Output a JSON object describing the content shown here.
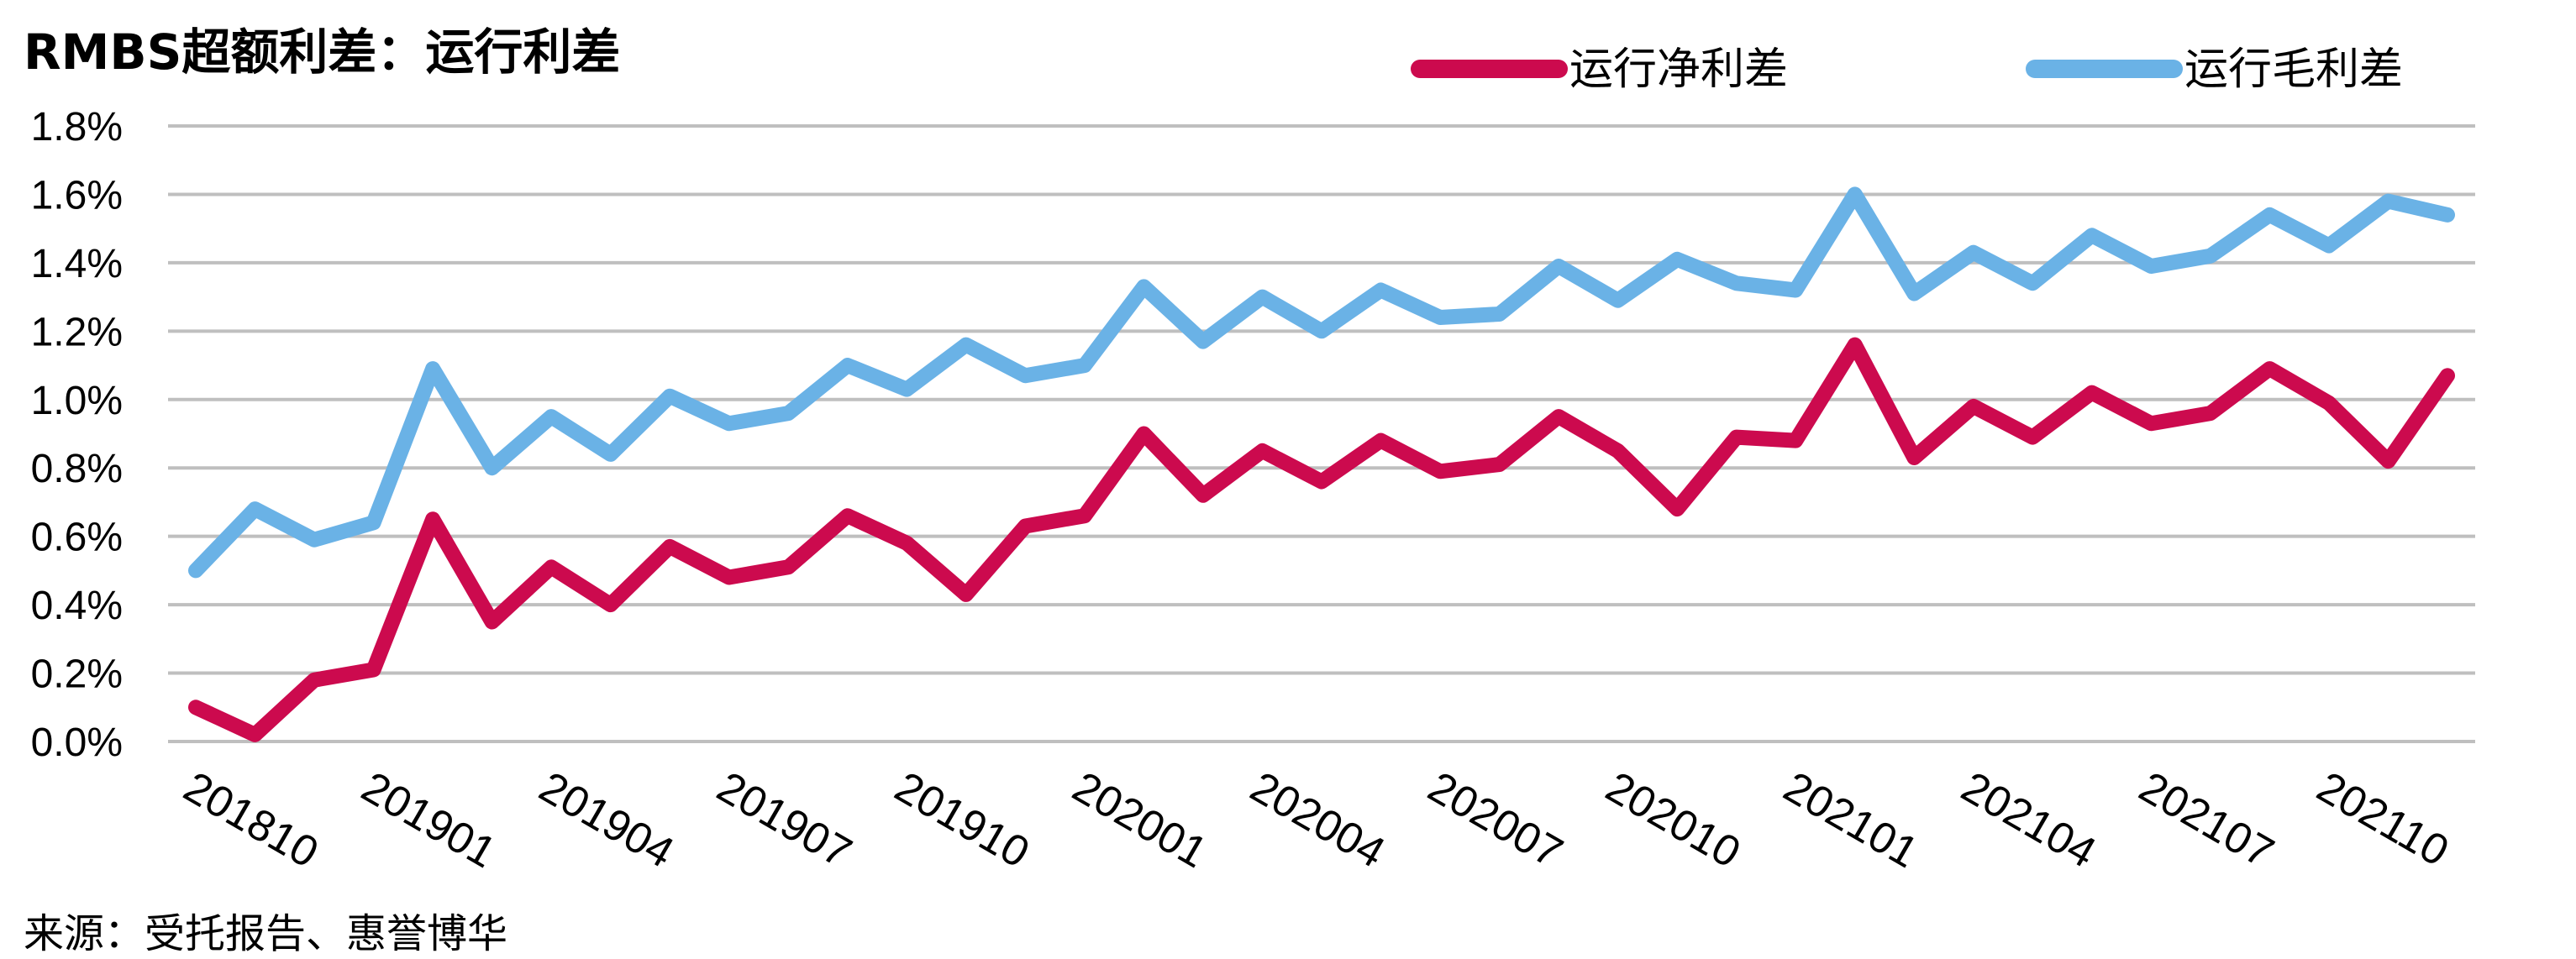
{
  "chart_data": {
    "type": "line",
    "title": "RMBS超额利差：运行利差",
    "source": "来源：受托报告、惠誉博华",
    "x": [
      "201810",
      "201811",
      "201812",
      "201901",
      "201902",
      "201903",
      "201904",
      "201905",
      "201906",
      "201907",
      "201908",
      "201909",
      "201910",
      "201911",
      "201912",
      "202001",
      "202002",
      "202003",
      "202004",
      "202005",
      "202006",
      "202007",
      "202008",
      "202009",
      "202010",
      "202011",
      "202012",
      "202101",
      "202102",
      "202103",
      "202104",
      "202105",
      "202106",
      "202107",
      "202108",
      "202109",
      "202110",
      "202111",
      "202112"
    ],
    "x_tick_labels": [
      "201810",
      "201901",
      "201904",
      "201907",
      "201910",
      "202001",
      "202004",
      "202007",
      "202010",
      "202101",
      "202104",
      "202107",
      "202110"
    ],
    "ylim": [
      0,
      1.8
    ],
    "y_tick_labels": [
      "0.0%",
      "0.2%",
      "0.4%",
      "0.6%",
      "0.8%",
      "1.0%",
      "1.2%",
      "1.4%",
      "1.6%",
      "1.8%"
    ],
    "grid": true,
    "legend_position": "top-right",
    "series": [
      {
        "name": "运行净利差",
        "color": "#cc0a4e",
        "values": [
          0.1,
          0.02,
          0.18,
          0.21,
          0.65,
          0.35,
          0.51,
          0.4,
          0.57,
          0.48,
          0.51,
          0.66,
          0.58,
          0.43,
          0.63,
          0.66,
          0.9,
          0.72,
          0.85,
          0.76,
          0.88,
          0.79,
          0.81,
          0.95,
          0.85,
          0.68,
          0.89,
          0.88,
          1.16,
          0.83,
          0.98,
          0.89,
          1.02,
          0.93,
          0.96,
          1.09,
          0.99,
          0.82,
          1.07
        ]
      },
      {
        "name": "运行毛利差",
        "color": "#6ab2e6",
        "values": [
          0.5,
          0.68,
          0.59,
          0.64,
          1.09,
          0.8,
          0.95,
          0.84,
          1.01,
          0.93,
          0.96,
          1.1,
          1.03,
          1.16,
          1.07,
          1.1,
          1.33,
          1.17,
          1.3,
          1.2,
          1.32,
          1.24,
          1.25,
          1.39,
          1.29,
          1.41,
          1.34,
          1.32,
          1.6,
          1.31,
          1.43,
          1.34,
          1.48,
          1.39,
          1.42,
          1.54,
          1.45,
          1.58,
          1.54
        ]
      }
    ]
  }
}
